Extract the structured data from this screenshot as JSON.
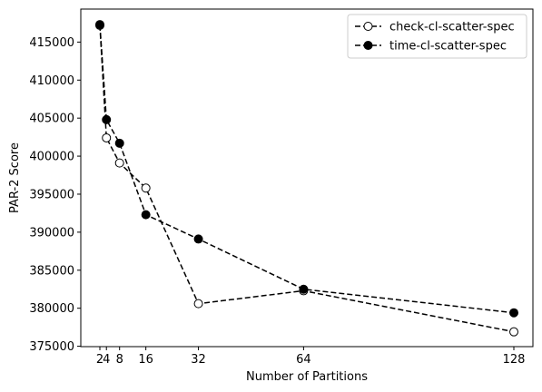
{
  "chart_data": {
    "type": "line",
    "title": "",
    "xlabel": "Number of Partitions",
    "ylabel": "PAR-2 Score",
    "x": [
      2,
      4,
      8,
      16,
      32,
      64,
      128
    ],
    "x_tick_labels": [
      "2",
      "4",
      "8",
      "16",
      "32",
      "64",
      "128"
    ],
    "xlim": [
      -3.8,
      133.8
    ],
    "y_ticks": [
      375000,
      380000,
      385000,
      390000,
      395000,
      400000,
      405000,
      410000,
      415000
    ],
    "y_tick_labels": [
      "375000",
      "380000",
      "385000",
      "390000",
      "395000",
      "400000",
      "405000",
      "410000",
      "415000"
    ],
    "ylim": [
      374950,
      419340
    ],
    "grid": false,
    "legend_position": "top-right",
    "series": [
      {
        "name": "check-cl-scatter-spec",
        "values": [
          417200,
          402400,
          399100,
          395800,
          380600,
          382300,
          376900
        ],
        "marker": "open-circle",
        "line_style": "dashed",
        "color": "#000000"
      },
      {
        "name": "time-cl-scatter-spec",
        "values": [
          417300,
          404800,
          401700,
          392300,
          389100,
          382500,
          379400
        ],
        "marker": "filled-circle",
        "line_style": "dashed",
        "color": "#000000"
      }
    ]
  }
}
